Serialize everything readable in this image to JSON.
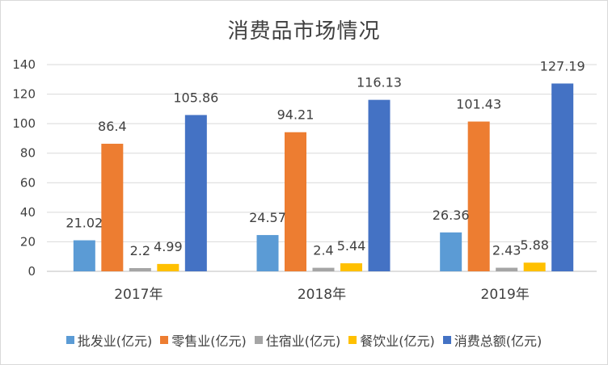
{
  "chart_data": {
    "type": "bar",
    "title": "消费品市场情况",
    "categories": [
      "2017年",
      "2018年",
      "2019年"
    ],
    "ylim": [
      0,
      140
    ],
    "yticks": [
      0,
      20,
      40,
      60,
      80,
      100,
      120,
      140
    ],
    "grid": true,
    "legend_position": "bottom",
    "series": [
      {
        "name": "批发业(亿元)",
        "color": "#5b9bd5",
        "values": [
          21.02,
          24.57,
          26.36
        ]
      },
      {
        "name": "零售业(亿元)",
        "color": "#ed7d31",
        "values": [
          86.4,
          94.21,
          101.43
        ]
      },
      {
        "name": "住宿业(亿元)",
        "color": "#a5a5a5",
        "values": [
          2.2,
          2.4,
          2.43
        ]
      },
      {
        "name": "餐饮业(亿元)",
        "color": "#ffc000",
        "values": [
          4.99,
          5.44,
          5.88
        ]
      },
      {
        "name": "消费总额(亿元)",
        "color": "#4472c4",
        "values": [
          105.86,
          116.13,
          127.19
        ]
      }
    ]
  }
}
